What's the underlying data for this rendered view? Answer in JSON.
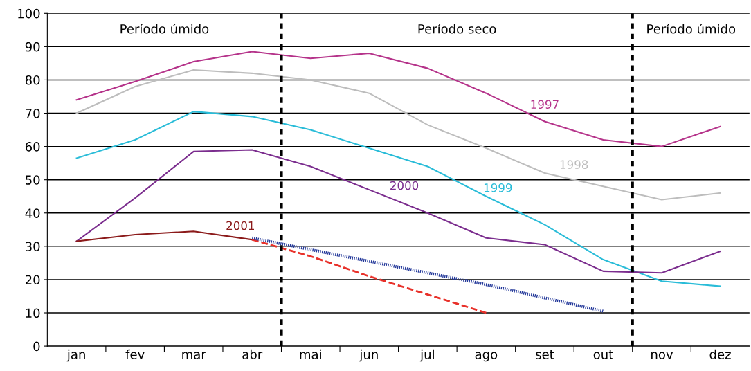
{
  "chart_data": {
    "type": "line",
    "categories": [
      "jan",
      "fev",
      "mar",
      "abr",
      "mai",
      "jun",
      "jul",
      "ago",
      "set",
      "out",
      "nov",
      "dez"
    ],
    "series": [
      {
        "name": "1997",
        "color": "#b5338a",
        "values": [
          74,
          79.5,
          85.5,
          88.5,
          86.5,
          88,
          83.5,
          76,
          67.5,
          62,
          60,
          66
        ]
      },
      {
        "name": "1998",
        "color": "#bdbdbd",
        "values": [
          70,
          78,
          83,
          82,
          80,
          76,
          66.5,
          59.5,
          52,
          48,
          44,
          46
        ]
      },
      {
        "name": "1999",
        "color": "#29bcd8",
        "values": [
          56.5,
          62,
          70.5,
          69,
          65,
          59.5,
          54,
          45,
          36.5,
          26,
          19.5,
          18
        ]
      },
      {
        "name": "2000",
        "color": "#7b2d8e",
        "values": [
          31.5,
          44.5,
          58.5,
          59,
          54,
          47,
          40,
          32.5,
          30.5,
          22.5,
          22,
          28.5
        ]
      },
      {
        "name": "2001",
        "color": "#8b1a1a",
        "values": [
          31.5,
          33.5,
          34.5,
          32,
          null,
          null,
          null,
          null,
          null,
          null,
          null,
          null
        ]
      },
      {
        "color": "#e8312a",
        "line_style": "dashed",
        "values": [
          null,
          null,
          null,
          32,
          27,
          21,
          15.5,
          10,
          null,
          null,
          null,
          null
        ]
      },
      {
        "color": "#24399a",
        "line_style": "dotted",
        "values": [
          null,
          null,
          null,
          32.5,
          29,
          25.5,
          22,
          18.5,
          14.5,
          10.5,
          null,
          null
        ]
      }
    ],
    "ylim": [
      0,
      100
    ],
    "yticks": [
      0,
      10,
      20,
      30,
      40,
      50,
      60,
      70,
      80,
      90,
      100
    ],
    "grid": "y",
    "legend": false,
    "line_style": "solid",
    "annotations": [
      "Período úmido",
      "Período seco",
      "Período úmido"
    ]
  }
}
